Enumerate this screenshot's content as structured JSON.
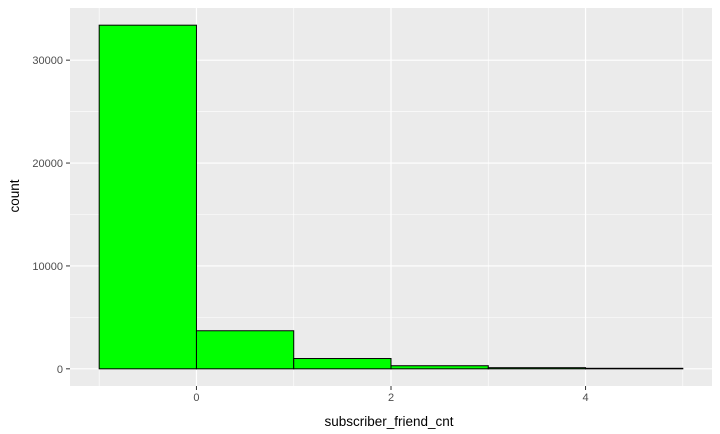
{
  "chart_data": {
    "type": "bar",
    "subtype": "histogram",
    "title": "",
    "xlabel": "subscriber_friend_cnt",
    "ylabel": "count",
    "bins": [
      {
        "x_start": -1,
        "x_end": 0,
        "count": 33400
      },
      {
        "x_start": 0,
        "x_end": 1,
        "count": 3700
      },
      {
        "x_start": 1,
        "x_end": 2,
        "count": 1000
      },
      {
        "x_start": 2,
        "x_end": 3,
        "count": 300
      },
      {
        "x_start": 3,
        "x_end": 4,
        "count": 110
      },
      {
        "x_start": 4,
        "x_end": 5,
        "count": 50
      }
    ],
    "xlim": [
      -1.3,
      5.3
    ],
    "ylim": [
      -1670,
      35070
    ],
    "x_ticks": [
      0,
      2,
      4
    ],
    "x_tick_labels": [
      "0",
      "2",
      "4"
    ],
    "x_minor_ticks": [
      -1,
      1,
      3,
      5
    ],
    "y_ticks": [
      0,
      10000,
      20000,
      30000
    ],
    "y_tick_labels": [
      "0",
      "10000",
      "20000",
      "30000"
    ],
    "y_minor_ticks": [
      5000,
      15000,
      25000
    ],
    "grid": true,
    "legend": "none",
    "colors": {
      "bar_fill": "#00ff00",
      "bar_outline": "#000000",
      "panel_background": "#ebebeb",
      "grid": "#ffffff",
      "tick_text": "#4d4d4d",
      "tick_mark": "#333333"
    }
  }
}
